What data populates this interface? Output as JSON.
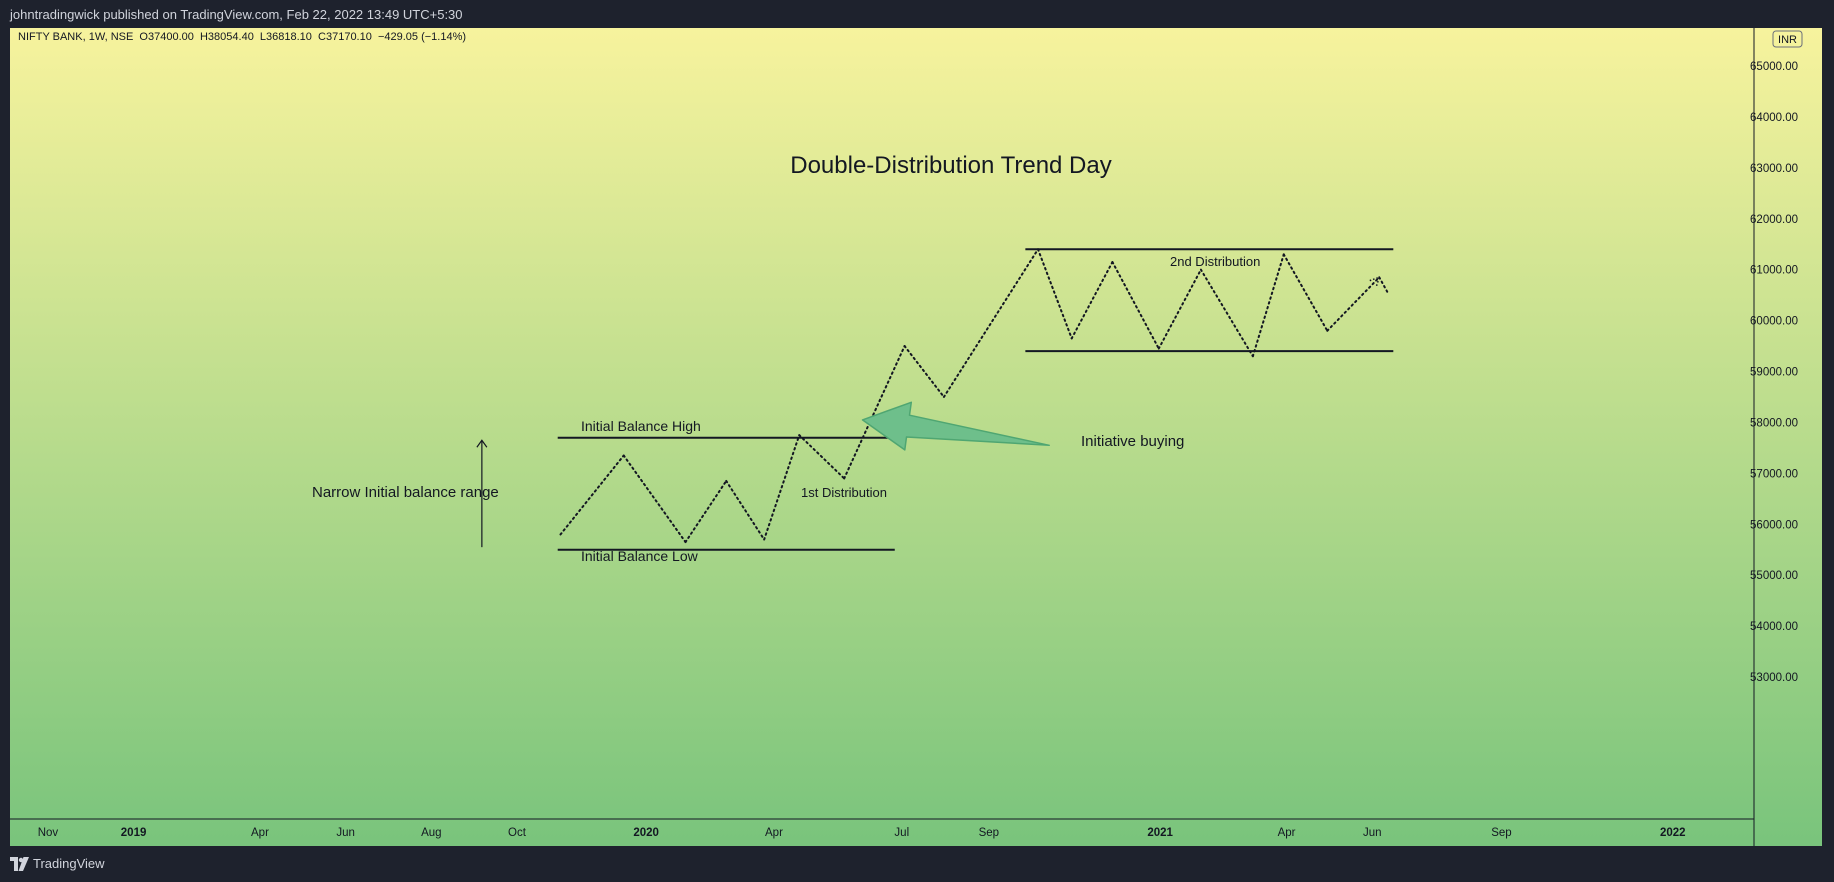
{
  "header": {
    "publisher_line": "johntradingwick published on TradingView.com, Feb 22, 2022 13:49 UTC+5:30"
  },
  "legend": {
    "ohlc_line": "NIFTY BANK, 1W, NSE  O37400.00  H38054.40  L36818.10  C37170.10  −429.05 (−1.14%)"
  },
  "currency_badge": "INR",
  "footer": {
    "brand": "TradingView"
  },
  "colors": {
    "bg_top": "#f7f39d",
    "bg_bottom": "#79c47c",
    "ink": "#131722",
    "arrow_fill": "#6ebf8b",
    "arrow_stroke": "#4fa672",
    "frame": "#131722"
  },
  "chart_data": {
    "type": "line",
    "title": "Double-Distribution Trend Day",
    "price_axis": {
      "min": 52500,
      "max": 65500,
      "ticks": [
        65000,
        64000,
        63000,
        62000,
        61000,
        60000,
        59000,
        58000,
        57000,
        56000,
        55000,
        54000,
        53000
      ],
      "labels": [
        "65000.00",
        "64000.00",
        "63000.00",
        "62000.00",
        "61000.00",
        "60000.00",
        "59000.00",
        "58000.00",
        "57000.00",
        "56000.00",
        "55000.00",
        "54000.00",
        "53000.00"
      ]
    },
    "time_axis": {
      "start": "2018-10-05",
      "end": "2022-02-20",
      "ticks": [
        {
          "label": "Nov",
          "date": "2018-11-01",
          "bold": false
        },
        {
          "label": "2019",
          "date": "2019-01-01",
          "bold": true
        },
        {
          "label": "Apr",
          "date": "2019-04-01",
          "bold": false
        },
        {
          "label": "Jun",
          "date": "2019-06-01",
          "bold": false
        },
        {
          "label": "Aug",
          "date": "2019-08-01",
          "bold": false
        },
        {
          "label": "Oct",
          "date": "2019-10-01",
          "bold": false
        },
        {
          "label": "2020",
          "date": "2020-01-01",
          "bold": true
        },
        {
          "label": "Apr",
          "date": "2020-04-01",
          "bold": false
        },
        {
          "label": "Jul",
          "date": "2020-07-01",
          "bold": false
        },
        {
          "label": "Sep",
          "date": "2020-09-01",
          "bold": false
        },
        {
          "label": "2021",
          "date": "2021-01-01",
          "bold": true
        },
        {
          "label": "Apr",
          "date": "2021-04-01",
          "bold": false
        },
        {
          "label": "Jun",
          "date": "2021-06-01",
          "bold": false
        },
        {
          "label": "Sep",
          "date": "2021-09-01",
          "bold": false
        },
        {
          "label": "2022",
          "date": "2022-01-01",
          "bold": true
        }
      ]
    },
    "path_points": [
      {
        "date": "2019-11-01",
        "price": 55800
      },
      {
        "date": "2019-12-16",
        "price": 57350
      },
      {
        "date": "2020-01-29",
        "price": 55650
      },
      {
        "date": "2020-02-27",
        "price": 56850
      },
      {
        "date": "2020-03-25",
        "price": 55700
      },
      {
        "date": "2020-04-19",
        "price": 57750
      },
      {
        "date": "2020-05-21",
        "price": 56900
      },
      {
        "date": "2020-07-03",
        "price": 59500
      },
      {
        "date": "2020-07-31",
        "price": 58500
      },
      {
        "date": "2020-10-06",
        "price": 61400
      },
      {
        "date": "2020-10-30",
        "price": 59650
      },
      {
        "date": "2020-11-28",
        "price": 61150
      },
      {
        "date": "2020-12-31",
        "price": 59450
      },
      {
        "date": "2021-01-30",
        "price": 61000
      },
      {
        "date": "2021-03-08",
        "price": 59300
      },
      {
        "date": "2021-03-30",
        "price": 61300
      },
      {
        "date": "2021-04-30",
        "price": 59800
      },
      {
        "date": "2021-06-06",
        "price": 60850
      },
      {
        "date": "2021-06-12",
        "price": 60550
      }
    ],
    "levels": [
      {
        "name": "initial-balance-high",
        "price": 57700,
        "from": "2019-10-30",
        "to": "2020-06-26"
      },
      {
        "name": "initial-balance-low",
        "price": 55500,
        "from": "2019-10-30",
        "to": "2020-06-26"
      },
      {
        "name": "second-distribution-high",
        "price": 61400,
        "from": "2020-09-27",
        "to": "2021-06-16"
      },
      {
        "name": "second-distribution-low",
        "price": 59400,
        "from": "2020-09-27",
        "to": "2021-06-16"
      }
    ],
    "range_arrow": {
      "date": "2019-09-06",
      "from_price": 55550,
      "to_price": 57650
    },
    "big_arrow": {
      "tip_date": "2020-06-03",
      "tip_price": 58050,
      "tail_date": "2020-10-14",
      "tail_price": 57550
    },
    "annotations": {
      "ibh": "Initial Balance High",
      "ibl": "Initial Balance Low",
      "first": "1st Distribution",
      "second": "2nd Distribution",
      "initiative": "Initiative buying",
      "narrow": "Narrow Initial balance range"
    }
  }
}
